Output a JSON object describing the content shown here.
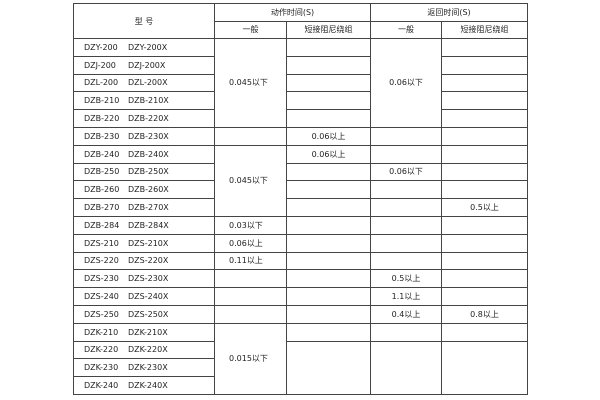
{
  "header": {
    "model": "型  号",
    "action_time": "动作时间(S)",
    "return_time": "返回时间(S)",
    "general": "一般",
    "shorting": "短接阻尼绕组"
  },
  "rows": [
    {
      "model": [
        "DZY-200",
        "DZY-200X"
      ],
      "action_general": "0.045以下",
      "action_shorting": "",
      "return_general": "0.06以下",
      "return_shorting": ""
    },
    {
      "model": [
        "DZJ-200",
        "DZJ-200X"
      ],
      "action_general": null,
      "action_shorting": "",
      "return_general": null,
      "return_shorting": ""
    },
    {
      "model": [
        "DZL-200",
        "DZL-200X"
      ],
      "action_general": null,
      "action_shorting": "",
      "return_general": null,
      "return_shorting": ""
    },
    {
      "model": [
        "DZB-210",
        "DZB-210X"
      ],
      "action_general": null,
      "action_shorting": "",
      "return_general": null,
      "return_shorting": ""
    },
    {
      "model": [
        "DZB-220",
        "DZB-220X"
      ],
      "action_general": null,
      "action_shorting": "",
      "return_general": null,
      "return_shorting": ""
    },
    {
      "model": [
        "DZB-230",
        "DZB-230X"
      ],
      "action_general": "",
      "action_shorting": "0.06以上",
      "return_general": "",
      "return_shorting": ""
    },
    {
      "model": [
        "DZB-240",
        "DZB-240X"
      ],
      "action_general": "0.045以下",
      "action_shorting": "0.06以上",
      "return_general": "",
      "return_shorting": ""
    },
    {
      "model": [
        "DZB-250",
        "DZB-250X"
      ],
      "action_general": null,
      "action_shorting": "",
      "return_general": "0.06以下",
      "return_shorting": ""
    },
    {
      "model": [
        "DZB-260",
        "DZB-260X"
      ],
      "action_general": null,
      "action_shorting": "",
      "return_general": "",
      "return_shorting": ""
    },
    {
      "model": [
        "DZB-270",
        "DZB-270X"
      ],
      "action_general": null,
      "action_shorting": "",
      "return_general": "",
      "return_shorting": "0.5以上"
    },
    {
      "model": [
        "DZB-284",
        "DZB-284X"
      ],
      "action_general": "0.03以下",
      "action_shorting": "",
      "return_general": "",
      "return_shorting": ""
    },
    {
      "model": [
        "DZS-210",
        "DZS-210X"
      ],
      "action_general": "0.06以上",
      "action_shorting": "",
      "return_general": "",
      "return_shorting": ""
    },
    {
      "model": [
        "DZS-220",
        "DZS-220X"
      ],
      "action_general": "0.11以上",
      "action_shorting": "",
      "return_general": "",
      "return_shorting": ""
    },
    {
      "model": [
        "DZS-230",
        "DZS-230X"
      ],
      "action_general": "",
      "action_shorting": "",
      "return_general": "0.5以上",
      "return_shorting": ""
    },
    {
      "model": [
        "DZS-240",
        "DZS-240X"
      ],
      "action_general": "",
      "action_shorting": "",
      "return_general": "1.1以上",
      "return_shorting": ""
    },
    {
      "model": [
        "DZS-250",
        "DZS-250X"
      ],
      "action_general": "",
      "action_shorting": "",
      "return_general": "0.4以上",
      "return_shorting": "0.8以上"
    },
    {
      "model": [
        "DZK-210",
        "DZK-210X"
      ],
      "action_general": "0.015以下",
      "action_shorting": "",
      "return_general": "",
      "return_shorting": ""
    },
    {
      "model": [
        "DZK-220",
        "DZK-220X"
      ],
      "action_general": null,
      "action_shorting": "",
      "return_general": "",
      "return_shorting": ""
    },
    {
      "model": [
        "DZK-230",
        "DZK-230X"
      ],
      "action_general": null,
      "action_shorting": null,
      "return_general": null,
      "return_shorting": null
    },
    {
      "model": [
        "DZK-240",
        "DZK-240X"
      ],
      "action_general": null,
      "action_shorting": null,
      "return_general": null,
      "return_shorting": null
    }
  ]
}
